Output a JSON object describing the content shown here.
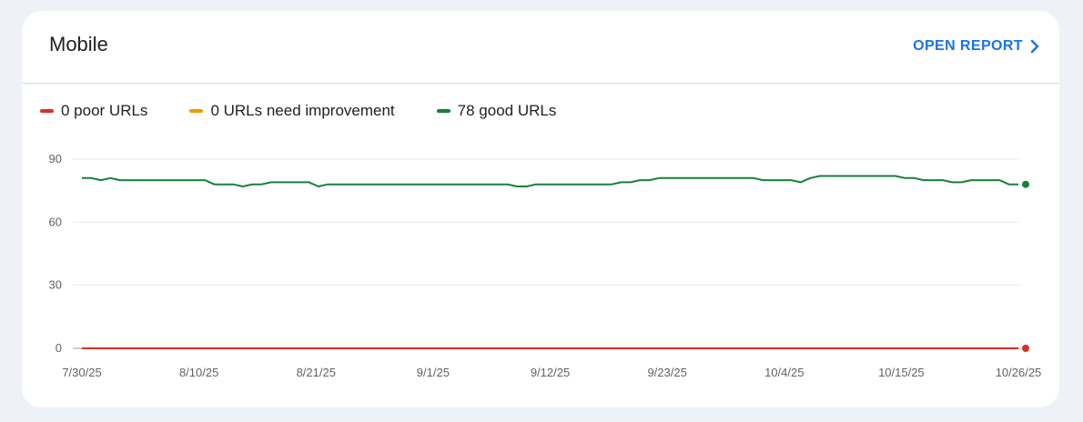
{
  "card": {
    "title": "Mobile",
    "open_report_label": "OPEN REPORT"
  },
  "legend": [
    {
      "label": "0 poor URLs",
      "color": "#d93025"
    },
    {
      "label": "0 URLs need improvement",
      "color": "#f29900"
    },
    {
      "label": "78 good URLs",
      "color": "#188038"
    }
  ],
  "chart_data": {
    "type": "line",
    "title": "",
    "xlabel": "",
    "ylabel": "",
    "ylim": [
      0,
      90
    ],
    "yticks": [
      "0",
      "30",
      "60",
      "90"
    ],
    "grid": true,
    "legend_position": "top-left",
    "x_start": "2025-07-30",
    "x_end": "2025-10-26",
    "x_tick_labels": [
      "7/30/25",
      "8/10/25",
      "8/21/25",
      "9/1/25",
      "9/12/25",
      "9/23/25",
      "10/4/25",
      "10/15/25",
      "10/26/25"
    ],
    "series": [
      {
        "name": "good URLs",
        "color": "#188038",
        "values": [
          81,
          81,
          80,
          81,
          80,
          80,
          80,
          80,
          80,
          80,
          80,
          80,
          80,
          80,
          78,
          78,
          78,
          77,
          78,
          78,
          79,
          79,
          79,
          79,
          79,
          77,
          78,
          78,
          78,
          78,
          78,
          78,
          78,
          78,
          78,
          78,
          78,
          78,
          78,
          78,
          78,
          78,
          78,
          78,
          78,
          78,
          77,
          77,
          78,
          78,
          78,
          78,
          78,
          78,
          78,
          78,
          78,
          79,
          79,
          80,
          80,
          81,
          81,
          81,
          81,
          81,
          81,
          81,
          81,
          81,
          81,
          81,
          80,
          80,
          80,
          80,
          79,
          81,
          82,
          82,
          82,
          82,
          82,
          82,
          82,
          82,
          82,
          81,
          81,
          80,
          80,
          80,
          79,
          79,
          80,
          80,
          80,
          80,
          78,
          78
        ]
      },
      {
        "name": "poor URLs",
        "color": "#d93025",
        "values": [
          0,
          0,
          0,
          0,
          0,
          0,
          0,
          0,
          0,
          0,
          0,
          0,
          0,
          0,
          0,
          0,
          0,
          0,
          0,
          0,
          0,
          0,
          0,
          0,
          0,
          0,
          0,
          0,
          0,
          0,
          0,
          0,
          0,
          0,
          0,
          0,
          0,
          0,
          0,
          0,
          0,
          0,
          0,
          0,
          0,
          0,
          0,
          0,
          0,
          0,
          0,
          0,
          0,
          0,
          0,
          0,
          0,
          0,
          0,
          0,
          0,
          0,
          0,
          0,
          0,
          0,
          0,
          0,
          0,
          0,
          0,
          0,
          0,
          0,
          0,
          0,
          0,
          0,
          0,
          0,
          0,
          0,
          0,
          0,
          0,
          0,
          0,
          0,
          0,
          0,
          0,
          0,
          0,
          0,
          0,
          0,
          0,
          0,
          0,
          0
        ]
      }
    ]
  }
}
